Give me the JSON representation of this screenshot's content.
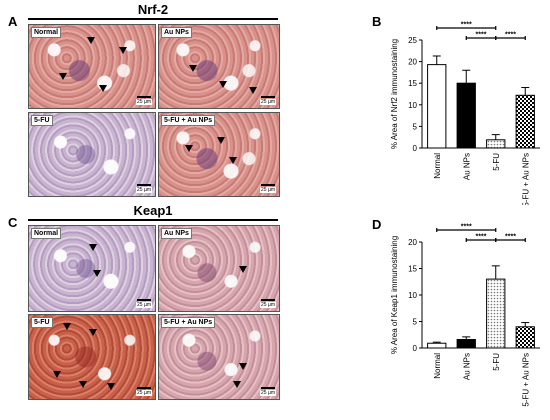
{
  "panels": {
    "A": "A",
    "B": "B",
    "C": "C",
    "D": "D"
  },
  "sections": {
    "top_title": "Nrf-2",
    "bottom_title": "Keap1"
  },
  "micrographs": {
    "top": [
      {
        "label": "Normal",
        "scale": "25 µm"
      },
      {
        "label": "Au NPs",
        "scale": "25 µm"
      },
      {
        "label": "5-FU",
        "scale": "25 µm"
      },
      {
        "label": "5-FU + Au NPs",
        "scale": "25 µm"
      }
    ],
    "bottom": [
      {
        "label": "Normal",
        "scale": "25 µm"
      },
      {
        "label": "Au NPs",
        "scale": "25 µm"
      },
      {
        "label": "5-FU",
        "scale": "25 µm"
      },
      {
        "label": "5-FU + Au NPs",
        "scale": "25 µm"
      }
    ]
  },
  "chart_data": [
    {
      "type": "bar",
      "ylabel": "% Area of Nrf2 immunostaining",
      "categories": [
        "Normal",
        "Au NPs",
        "5-FU",
        "5-FU + Au NPs"
      ],
      "values": [
        19.3,
        15.0,
        1.9,
        12.2
      ],
      "errors": [
        2.0,
        3.0,
        1.2,
        1.8
      ],
      "ylim": [
        0,
        25
      ],
      "yticks": [
        0,
        5,
        10,
        15,
        20,
        25
      ],
      "bar_fills": [
        "white",
        "black",
        "dots",
        "checker"
      ],
      "significance": [
        {
          "from": "Normal",
          "to": "5-FU",
          "label": "****"
        },
        {
          "from": "Au NPs",
          "to": "5-FU",
          "label": "****"
        },
        {
          "from": "5-FU",
          "to": "5-FU + Au NPs",
          "label": "****"
        }
      ]
    },
    {
      "type": "bar",
      "ylabel": "% Area of Keap1 immunostaining",
      "categories": [
        "Normal",
        "Au NPs",
        "5-FU",
        "5-FU + Au NPs"
      ],
      "values": [
        0.9,
        1.6,
        13.0,
        4.0
      ],
      "errors": [
        0.2,
        0.5,
        2.5,
        0.8
      ],
      "ylim": [
        0,
        20
      ],
      "yticks": [
        0,
        5,
        10,
        15,
        20
      ],
      "bar_fills": [
        "white",
        "black",
        "dots",
        "checker"
      ],
      "significance": [
        {
          "from": "Normal",
          "to": "5-FU",
          "label": "****"
        },
        {
          "from": "Au NPs",
          "to": "5-FU",
          "label": "****"
        },
        {
          "from": "5-FU",
          "to": "5-FU + Au NPs",
          "label": "****"
        }
      ]
    }
  ],
  "colors": {
    "bar_stroke": "#000000",
    "axis": "#000000",
    "title_line": "#000000"
  }
}
